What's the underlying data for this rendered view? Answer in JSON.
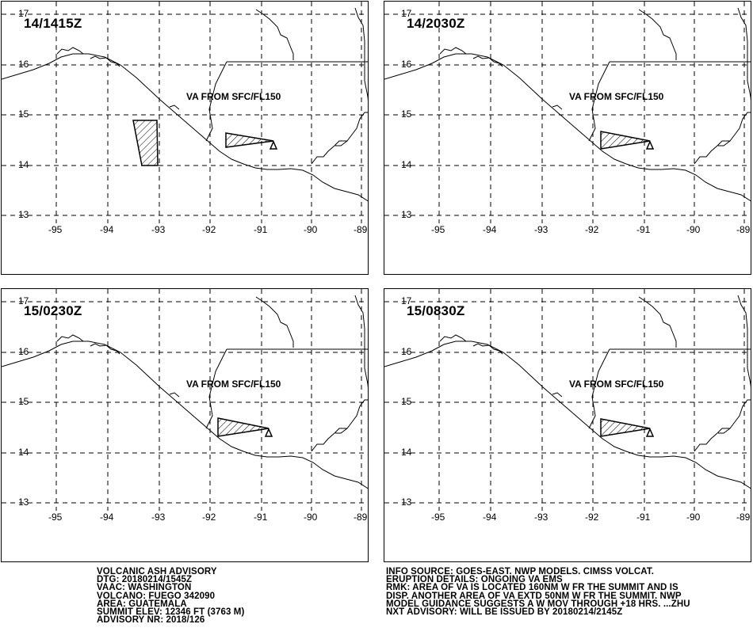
{
  "panels": [
    {
      "time": "14/1415Z",
      "va_label": "VA FROM SFC/FL150"
    },
    {
      "time": "14/2030Z",
      "va_label": "VA FROM SFC/FL150"
    },
    {
      "time": "15/0230Z",
      "va_label": "VA FROM SFC/FL150"
    },
    {
      "time": "15/0830Z",
      "va_label": "VA FROM SFC/FL150"
    }
  ],
  "map": {
    "lat_labels": [
      "17",
      "16",
      "15",
      "14",
      "13"
    ],
    "lon_labels": [
      "-95",
      "-94",
      "-93",
      "-92",
      "-91",
      "-90",
      "-89"
    ],
    "lat_range": [
      13,
      17
    ],
    "lon_range": [
      -95.6,
      -88.8
    ]
  },
  "advisory_left": [
    "VOLCANIC ASH ADVISORY",
    "DTG: 20180214/1545Z",
    "VAAC: WASHINGTON",
    "VOLCANO: FUEGO 342090",
    "AREA: GUATEMALA",
    "SUMMIT ELEV: 12346 FT (3763 M)",
    "ADVISORY NR: 2018/126"
  ],
  "advisory_right": [
    "INFO SOURCE: GOES-EAST. NWP MODELS. CIMSS VOLCAT.",
    "ERUPTION DETAILS: ONGOING VA EMS",
    "RMK: AREA OF VA IS LOCATED 160NM W FR THE SUMMIT AND IS",
    "DISP. ANOTHER AREA OF VA EXTD 50NM W FR THE SUMMIT. NWP",
    "MODEL GUIDANCE SUGGESTS A W MOV THROUGH +18 HRS. ...ZHU",
    "NXT ADVISORY: WILL BE ISSUED BY 20180214/2145Z"
  ]
}
